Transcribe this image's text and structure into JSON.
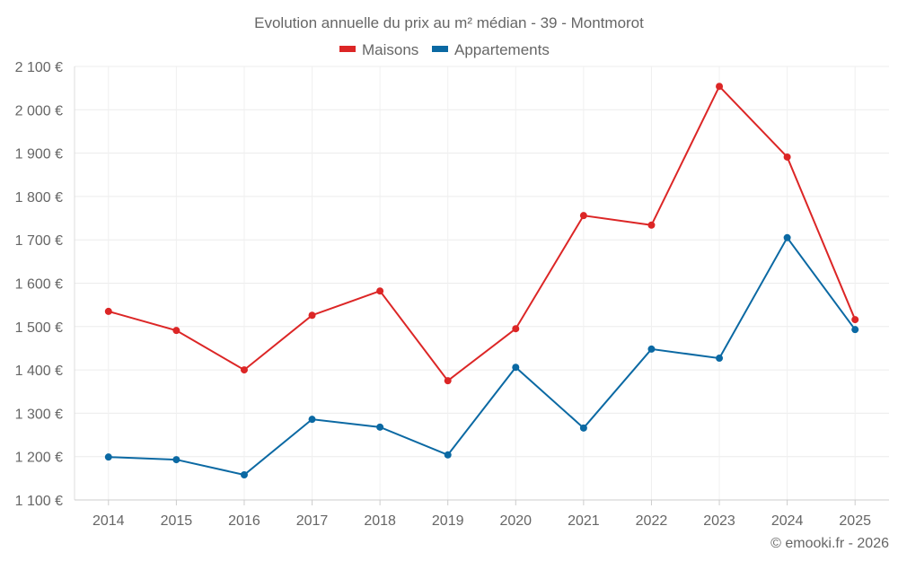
{
  "chart_data": {
    "type": "line",
    "title": "Evolution annuelle du prix au m² médian - 39 - Montmorot",
    "xlabel": "",
    "ylabel": "",
    "categories": [
      "2014",
      "2015",
      "2016",
      "2017",
      "2018",
      "2019",
      "2020",
      "2021",
      "2022",
      "2023",
      "2024",
      "2025"
    ],
    "ylim": [
      1100,
      2100
    ],
    "yticks": [
      1100,
      1200,
      1300,
      1400,
      1500,
      1600,
      1700,
      1800,
      1900,
      2000,
      2100
    ],
    "ytick_labels": [
      "1 100 €",
      "1 200 €",
      "1 300 €",
      "1 400 €",
      "1 500 €",
      "1 600 €",
      "1 700 €",
      "1 800 €",
      "1 900 €",
      "2 000 €",
      "2 100 €"
    ],
    "grid": true,
    "legend_position": "top-center",
    "series": [
      {
        "name": "Maisons",
        "color": "#dc2626",
        "values": [
          1535,
          1491,
          1400,
          1526,
          1582,
          1375,
          1495,
          1756,
          1734,
          2054,
          1891,
          1516
        ]
      },
      {
        "name": "Appartements",
        "color": "#0b69a3",
        "values": [
          1199,
          1193,
          1158,
          1286,
          1268,
          1204,
          1406,
          1266,
          1448,
          1427,
          1705,
          1493
        ]
      }
    ],
    "credit": "© emooki.fr - 2026"
  }
}
